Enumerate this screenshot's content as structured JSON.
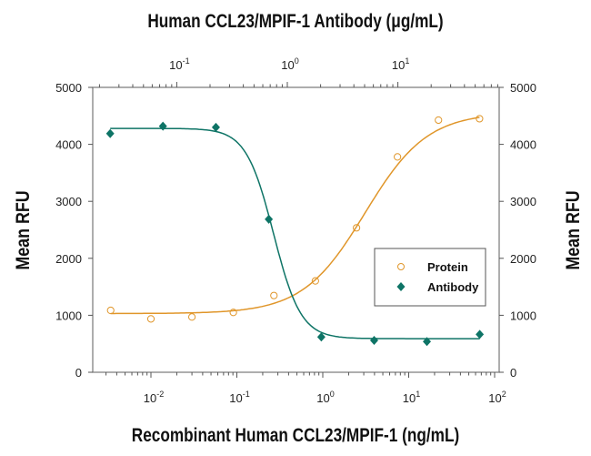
{
  "chart_data": {
    "type": "scatter",
    "title": "Human CCL23/MPIF-1 Antibody (μg/mL)",
    "xlabel": "Recombinant Human CCL23/MPIF-1 (ng/mL)",
    "x2label": "Human CCL23/MPIF-1 Antibody (μg/mL)",
    "ylabel": "Mean RFU",
    "y2label": "Mean RFU",
    "x_scale": "log",
    "x2_scale": "log",
    "xlim": [
      0.002,
      110
    ],
    "x2lim": [
      0.017,
      82
    ],
    "ylim": [
      0,
      5000
    ],
    "x_ticks": [
      {
        "v": 0.01,
        "label": "10",
        "exp": "-2"
      },
      {
        "v": 0.1,
        "label": "10",
        "exp": "-1"
      },
      {
        "v": 1,
        "label": "10",
        "exp": "0"
      },
      {
        "v": 10,
        "label": "10",
        "exp": "1"
      },
      {
        "v": 100,
        "label": "10",
        "exp": "2"
      }
    ],
    "x2_ticks": [
      {
        "v": 0.1,
        "label": "10",
        "exp": "-1"
      },
      {
        "v": 1,
        "label": "10",
        "exp": "0"
      },
      {
        "v": 10,
        "label": "10",
        "exp": "1"
      }
    ],
    "y_ticks": [
      "0",
      "1000",
      "2000",
      "3000",
      "4000",
      "5000"
    ],
    "legend_position": "center-right",
    "grid": false,
    "series": [
      {
        "name": "Protein",
        "axis": "bottom",
        "marker": "open-circle",
        "color": "#E0962A",
        "x": [
          0.0034,
          0.01,
          0.03,
          0.091,
          0.27,
          0.82,
          2.47,
          7.4,
          22.2,
          66.7
        ],
        "y": [
          1086,
          937,
          970,
          1050,
          1347,
          1603,
          2535,
          3780,
          4425,
          4450
        ],
        "fit": {
          "bottom": 1030,
          "top": 4560,
          "ec50": 3.1,
          "hill": 1.2
        }
      },
      {
        "name": "Antibody",
        "axis": "top",
        "marker": "filled-diamond",
        "color": "#0E7466",
        "x": [
          0.025,
          0.075,
          0.226,
          0.68,
          2.03,
          6.1,
          18.3,
          55
        ],
        "y": [
          4190,
          4320,
          4300,
          2685,
          620,
          560,
          540,
          665
        ],
        "fit": {
          "bottom": 590,
          "top": 4280,
          "ec50": 0.75,
          "hill": 3.5
        }
      }
    ]
  }
}
